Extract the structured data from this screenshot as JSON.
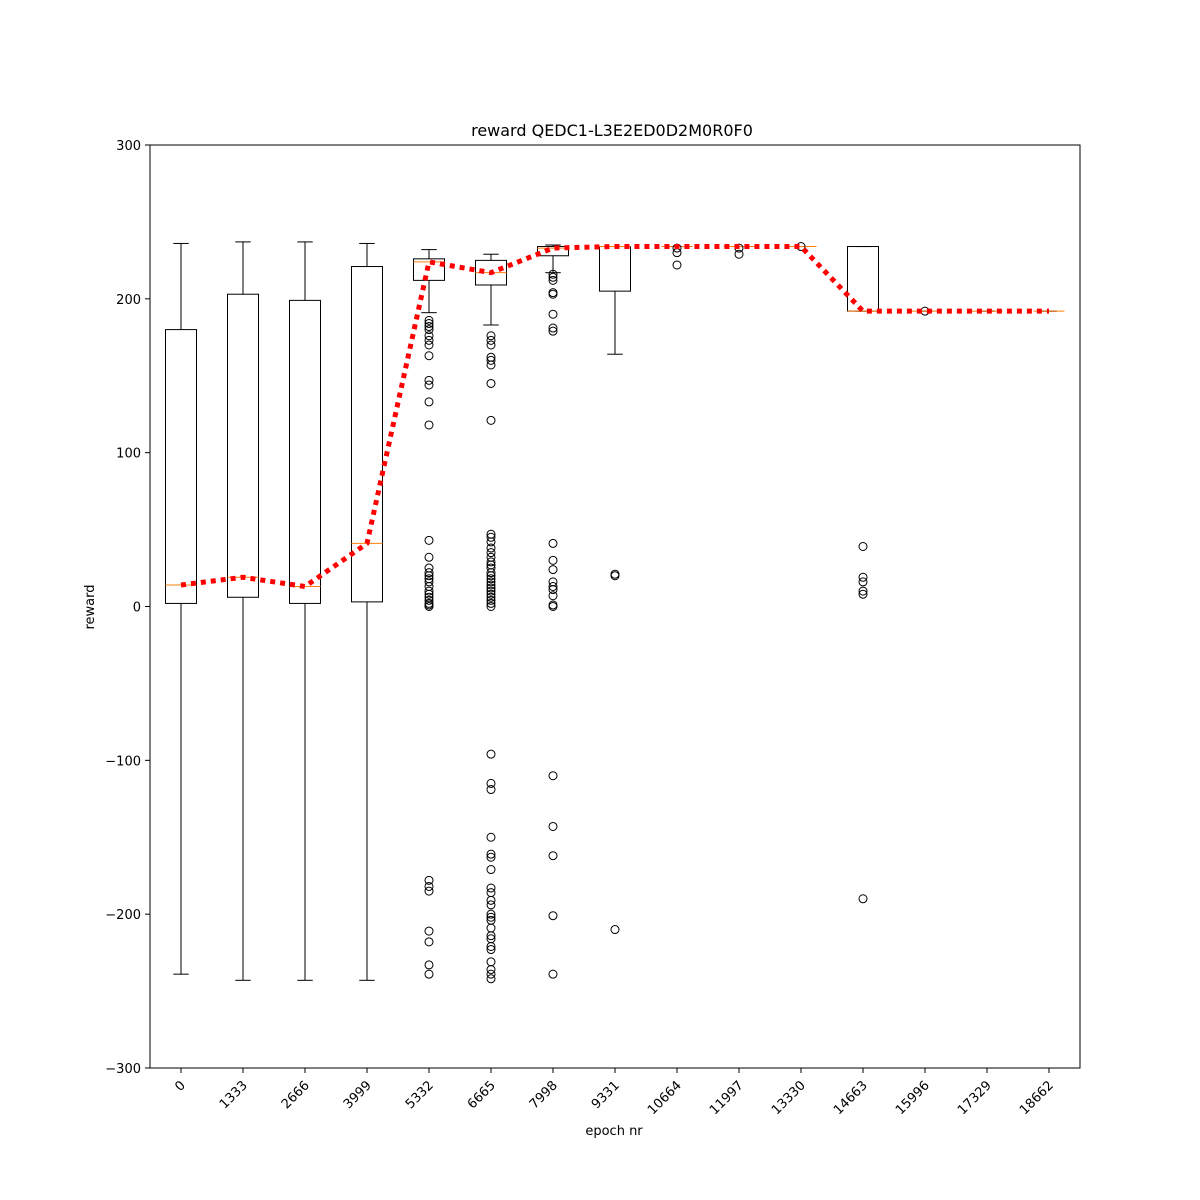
{
  "chart_data": {
    "type": "box",
    "title": "reward QEDC1-L3E2ED0D2M0R0F0",
    "xlabel": "epoch nr",
    "ylabel": "reward",
    "ylim": [
      -300,
      300
    ],
    "yticks": [
      -300,
      -200,
      -100,
      0,
      100,
      200,
      300
    ],
    "ytick_labels": [
      "−300",
      "−200",
      "−100",
      "0",
      "100",
      "200",
      "300"
    ],
    "grid": false,
    "categories": [
      "0",
      "1333",
      "2666",
      "3999",
      "5332",
      "6665",
      "7998",
      "9331",
      "10664",
      "11997",
      "13330",
      "14663",
      "15996",
      "17329",
      "18662"
    ],
    "colors": {
      "box": "#000000",
      "median": "#ff7f0e",
      "trend": "#ff0000"
    },
    "boxes": [
      {
        "whislo": -239,
        "q1": 2,
        "med": 14,
        "q3": 180,
        "whishi": 236,
        "fliers": []
      },
      {
        "whislo": -243,
        "q1": 6,
        "med": 19,
        "q3": 203,
        "whishi": 237,
        "fliers": []
      },
      {
        "whislo": -243,
        "q1": 2,
        "med": 13,
        "q3": 199,
        "whishi": 237,
        "fliers": []
      },
      {
        "whislo": -243,
        "q1": 3,
        "med": 41,
        "q3": 221,
        "whishi": 236,
        "fliers": []
      },
      {
        "whislo": 191,
        "q1": 212,
        "med": 224,
        "q3": 226,
        "whishi": 232,
        "fliers": [
          186,
          184,
          182,
          180,
          176,
          173,
          170,
          163,
          147,
          144,
          133,
          118,
          43,
          32,
          25,
          22,
          20,
          18,
          16,
          13,
          10,
          8,
          6,
          4,
          2,
          1,
          0,
          -178,
          -182,
          -185,
          -211,
          -218,
          -233,
          -239
        ]
      },
      {
        "whislo": 183,
        "q1": 209,
        "med": 217,
        "q3": 225,
        "whishi": 229,
        "fliers": [
          176,
          173,
          170,
          162,
          160,
          157,
          145,
          121,
          47,
          45,
          42,
          38,
          35,
          32,
          29,
          27,
          25,
          22,
          20,
          18,
          16,
          14,
          12,
          10,
          8,
          6,
          4,
          2,
          0,
          -96,
          -115,
          -119,
          -150,
          -161,
          -163,
          -171,
          -183,
          -186,
          -191,
          -194,
          -200,
          -202,
          -204,
          -209,
          -214,
          -216,
          -221,
          -223,
          -231,
          -236,
          -239,
          -242
        ]
      },
      {
        "whislo": 217,
        "q1": 228,
        "med": 233,
        "q3": 234,
        "whishi": 235,
        "fliers": [
          216,
          214,
          212,
          204,
          203,
          190,
          181,
          179,
          41,
          30,
          24,
          16,
          13,
          11,
          7,
          1,
          0,
          -110,
          -143,
          -162,
          -201,
          -239
        ]
      },
      {
        "whislo": 164,
        "q1": 205,
        "med": 234,
        "q3": 234,
        "whishi": 234,
        "fliers": [
          21,
          20,
          -210
        ]
      },
      {
        "whislo": 234,
        "q1": 234,
        "med": 234,
        "q3": 234,
        "whishi": 234,
        "fliers": [
          233,
          230,
          222
        ]
      },
      {
        "whislo": 234,
        "q1": 234,
        "med": 234,
        "q3": 234,
        "whishi": 234,
        "fliers": [
          233,
          229
        ]
      },
      {
        "whislo": 234,
        "q1": 234,
        "med": 234,
        "q3": 234,
        "whishi": 234,
        "fliers": [
          234
        ]
      },
      {
        "whislo": 192,
        "q1": 192,
        "med": 192,
        "q3": 234,
        "whishi": 234,
        "fliers": [
          39,
          19,
          16,
          10,
          8,
          -190
        ]
      },
      {
        "whislo": 192,
        "q1": 192,
        "med": 192,
        "q3": 192,
        "whishi": 192,
        "fliers": [
          192
        ]
      },
      {
        "whislo": 192,
        "q1": 192,
        "med": 192,
        "q3": 192,
        "whishi": 192,
        "fliers": []
      },
      {
        "whislo": 192,
        "q1": 192,
        "med": 192,
        "q3": 192,
        "whishi": 192,
        "fliers": []
      }
    ],
    "trend_line": {
      "style": "dotted",
      "values": [
        14,
        19,
        13,
        41,
        224,
        217,
        233,
        234,
        234,
        234,
        234,
        192,
        192,
        192,
        192
      ]
    }
  }
}
